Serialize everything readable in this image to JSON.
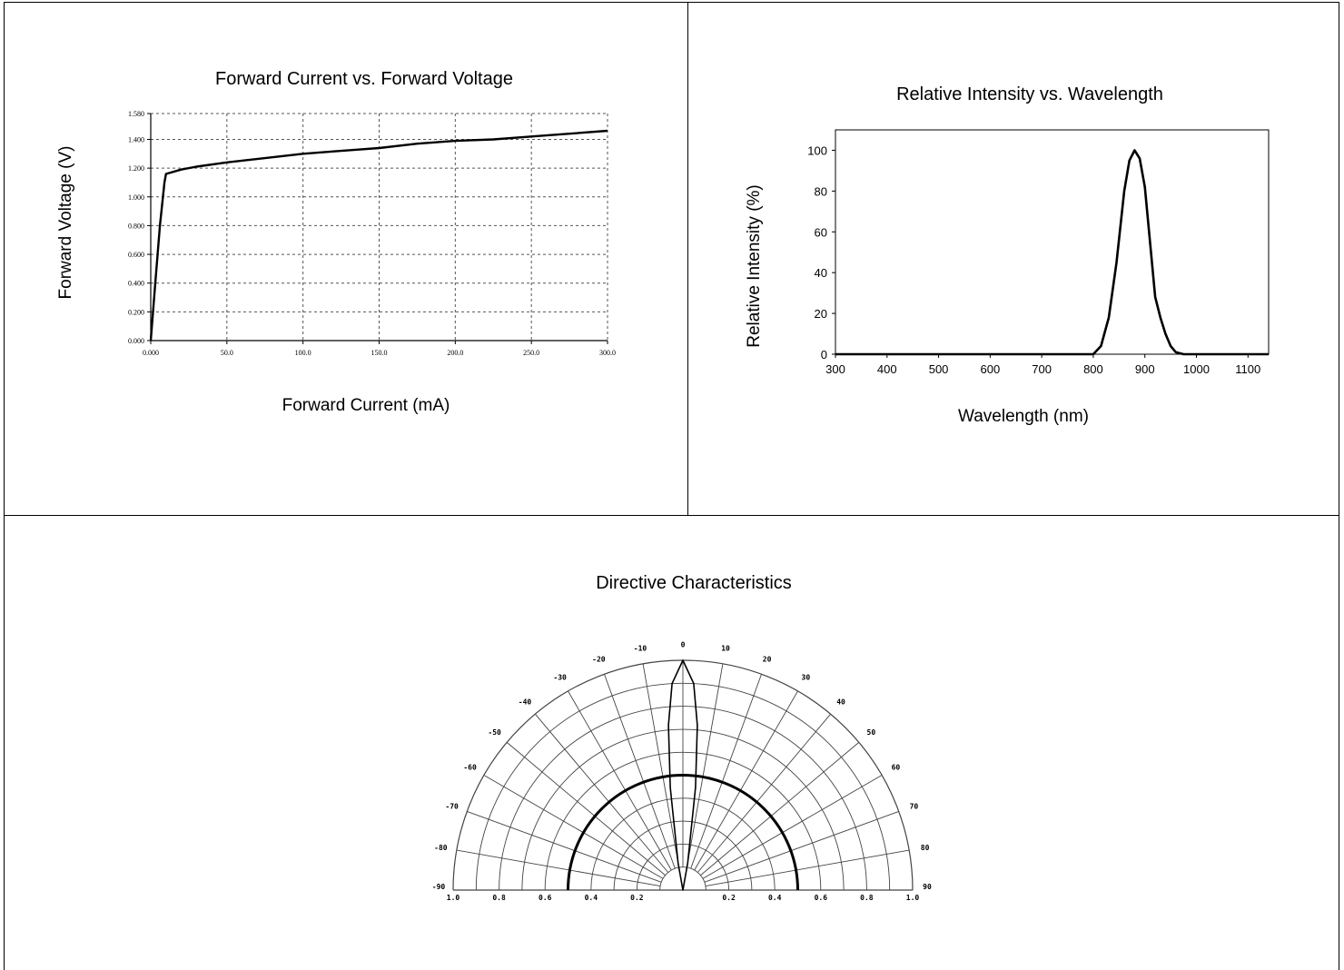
{
  "chart_data": [
    {
      "type": "line",
      "title": "Forward Current vs. Forward Voltage",
      "xlabel": "Forward Current (mA)",
      "ylabel": "Forward Voltage (V)",
      "xlim": [
        0,
        300
      ],
      "ylim": [
        0,
        1.58
      ],
      "x_ticks": [
        "0.000",
        "50.0",
        "100.0",
        "150.0",
        "200.0",
        "250.0",
        "300.0"
      ],
      "y_ticks": [
        "0.000",
        "0.200",
        "0.400",
        "0.600",
        "0.800",
        "1.000",
        "1.200",
        "1.400",
        "1.580"
      ],
      "y_tick_values": [
        0,
        0.2,
        0.4,
        0.6,
        0.8,
        1.0,
        1.2,
        1.4,
        1.58
      ],
      "grid": true,
      "series": [
        {
          "x": [
            0,
            3,
            6,
            9,
            10,
            20,
            30,
            50,
            75,
            100,
            125,
            150,
            175,
            200,
            225,
            250,
            275,
            300
          ],
          "y": [
            0.0,
            0.4,
            0.8,
            1.1,
            1.16,
            1.19,
            1.21,
            1.24,
            1.27,
            1.3,
            1.32,
            1.34,
            1.37,
            1.39,
            1.4,
            1.42,
            1.44,
            1.46
          ]
        }
      ]
    },
    {
      "type": "line",
      "title": "Relative Intensity vs. Wavelength",
      "xlabel": "Wavelength (nm)",
      "ylabel": "Relative Intensity (%)",
      "xlim": [
        300,
        1140
      ],
      "ylim": [
        0,
        110
      ],
      "x_ticks": [
        "300",
        "400",
        "500",
        "600",
        "700",
        "800",
        "900",
        "1000",
        "1100"
      ],
      "y_ticks": [
        "0",
        "20",
        "40",
        "60",
        "80",
        "100"
      ],
      "grid": false,
      "series": [
        {
          "x": [
            300,
            800,
            815,
            830,
            845,
            860,
            870,
            880,
            890,
            900,
            910,
            920,
            930,
            940,
            950,
            960,
            975,
            1000,
            1140
          ],
          "y": [
            0,
            0,
            4,
            18,
            45,
            80,
            95,
            100,
            96,
            82,
            55,
            28,
            18,
            10,
            4,
            1,
            0,
            0,
            0
          ]
        }
      ]
    },
    {
      "type": "polar",
      "title": "Directive Characteristics",
      "angle_labels": [
        "-90",
        "-80",
        "-70",
        "-60",
        "-50",
        "-40",
        "-30",
        "-20",
        "-10",
        "0",
        "10",
        "20",
        "30",
        "40",
        "50",
        "60",
        "70",
        "80",
        "90"
      ],
      "radial_labels": [
        "1.0",
        "0.8",
        "0.6",
        "0.4",
        "0.2",
        "0.2",
        "0.4",
        "0.6",
        "0.8",
        "1.0"
      ],
      "grid": true,
      "series": [
        {
          "name": "",
          "angle_deg": [
            -90,
            -60,
            -30,
            -10,
            0,
            10,
            30,
            60,
            90
          ],
          "r": [
            0.5,
            0.5,
            0.5,
            0.5,
            0.5,
            0.5,
            0.5,
            0.5,
            0.5
          ]
        },
        {
          "name": "",
          "angle_deg": [
            -10,
            -7,
            -5,
            -3,
            0,
            3,
            5,
            7,
            10
          ],
          "r": [
            0.12,
            0.45,
            0.72,
            0.9,
            1.0,
            0.9,
            0.72,
            0.45,
            0.12
          ]
        }
      ]
    }
  ]
}
